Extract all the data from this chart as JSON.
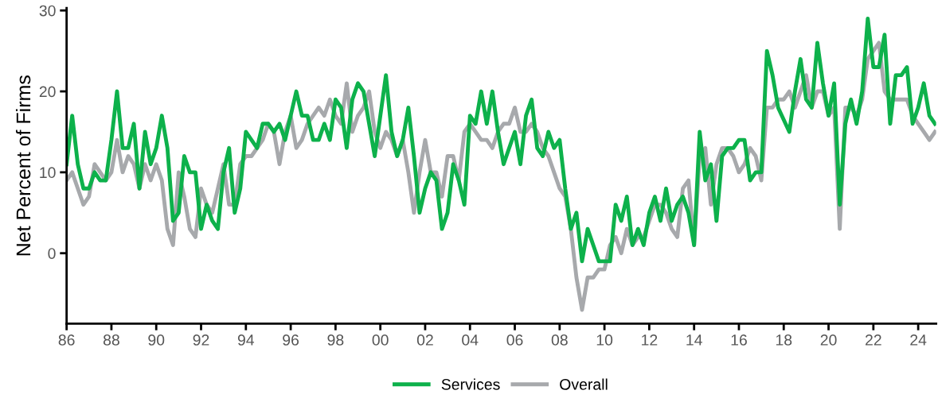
{
  "chart_data": {
    "type": "line",
    "ylabel": "Net Percent of Firms",
    "x": [
      1986,
      1986.25,
      1986.5,
      1986.75,
      1987,
      1987.25,
      1987.5,
      1987.75,
      1988,
      1988.25,
      1988.5,
      1988.75,
      1989,
      1989.25,
      1989.5,
      1989.75,
      1990,
      1990.25,
      1990.5,
      1990.75,
      1991,
      1991.25,
      1991.5,
      1991.75,
      1992,
      1992.25,
      1992.5,
      1992.75,
      1993,
      1993.25,
      1993.5,
      1993.75,
      1994,
      1994.25,
      1994.5,
      1994.75,
      1995,
      1995.25,
      1995.5,
      1995.75,
      1996,
      1996.25,
      1996.5,
      1996.75,
      1997,
      1997.25,
      1997.5,
      1997.75,
      1998,
      1998.25,
      1998.5,
      1998.75,
      1999,
      1999.25,
      1999.5,
      1999.75,
      2000,
      2000.25,
      2000.5,
      2000.75,
      2001,
      2001.25,
      2001.5,
      2001.75,
      2002,
      2002.25,
      2002.5,
      2002.75,
      2003,
      2003.25,
      2003.5,
      2003.75,
      2004,
      2004.25,
      2004.5,
      2004.75,
      2005,
      2005.25,
      2005.5,
      2005.75,
      2006,
      2006.25,
      2006.5,
      2006.75,
      2007,
      2007.25,
      2007.5,
      2007.75,
      2008,
      2008.25,
      2008.5,
      2008.75,
      2009,
      2009.25,
      2009.5,
      2009.75,
      2010,
      2010.25,
      2010.5,
      2010.75,
      2011,
      2011.25,
      2011.5,
      2011.75,
      2012,
      2012.25,
      2012.5,
      2012.75,
      2013,
      2013.25,
      2013.5,
      2013.75,
      2014,
      2014.25,
      2014.5,
      2014.75,
      2015,
      2015.25,
      2015.5,
      2015.75,
      2016,
      2016.25,
      2016.5,
      2016.75,
      2017,
      2017.25,
      2017.5,
      2017.75,
      2018,
      2018.25,
      2018.5,
      2018.75,
      2019,
      2019.25,
      2019.5,
      2019.75,
      2020,
      2020.25,
      2020.5,
      2020.75,
      2021,
      2021.25,
      2021.5,
      2021.75,
      2022,
      2022.25,
      2022.5,
      2022.75,
      2023,
      2023.25,
      2023.5,
      2023.75,
      2024,
      2024.25,
      2024.5,
      2024.75
    ],
    "xlim": [
      1986,
      2024.8
    ],
    "ylim": [
      -8.7,
      30.3
    ],
    "xticks": [
      {
        "value": 1986,
        "label": "86"
      },
      {
        "value": 1988,
        "label": "88"
      },
      {
        "value": 1990,
        "label": "90"
      },
      {
        "value": 1992,
        "label": "92"
      },
      {
        "value": 1994,
        "label": "94"
      },
      {
        "value": 1996,
        "label": "96"
      },
      {
        "value": 1998,
        "label": "98"
      },
      {
        "value": 2000,
        "label": "00"
      },
      {
        "value": 2002,
        "label": "02"
      },
      {
        "value": 2004,
        "label": "04"
      },
      {
        "value": 2006,
        "label": "06"
      },
      {
        "value": 2008,
        "label": "08"
      },
      {
        "value": 2010,
        "label": "10"
      },
      {
        "value": 2012,
        "label": "12"
      },
      {
        "value": 2014,
        "label": "14"
      },
      {
        "value": 2016,
        "label": "16"
      },
      {
        "value": 2018,
        "label": "18"
      },
      {
        "value": 2020,
        "label": "20"
      },
      {
        "value": 2022,
        "label": "22"
      },
      {
        "value": 2024,
        "label": "24"
      }
    ],
    "yticks": [
      0,
      10,
      20,
      30
    ],
    "grid": false,
    "legend": "bottom",
    "marker": "none",
    "line_style": "solid",
    "series": [
      {
        "name": "Services",
        "color": "#0db14b",
        "values": [
          11,
          17,
          11,
          8,
          8,
          10,
          9,
          9,
          14,
          20,
          13,
          13,
          16,
          8,
          15,
          11,
          13,
          17,
          13,
          4,
          5,
          12,
          10,
          10,
          3,
          6,
          4,
          3,
          10,
          13,
          5,
          8,
          15,
          14,
          13,
          16,
          16,
          15,
          16,
          14,
          17,
          20,
          17,
          17,
          14,
          14,
          16,
          14,
          19,
          18,
          13,
          19,
          21,
          20,
          16,
          12,
          17,
          22,
          15,
          12,
          14,
          18,
          12,
          5,
          8,
          10,
          9,
          3,
          5,
          11,
          9,
          6,
          17,
          16,
          20,
          16,
          20,
          15,
          11,
          13,
          15,
          11,
          17,
          19,
          13,
          12,
          15,
          13,
          14,
          8,
          3,
          5,
          -1,
          3,
          1,
          -1,
          -1,
          -1,
          6,
          4,
          7,
          1,
          3,
          1,
          5,
          7,
          4,
          8,
          4,
          6,
          7,
          5,
          1,
          15,
          9,
          11,
          4,
          12,
          13,
          13,
          14,
          14,
          9,
          10,
          10,
          25,
          22,
          18,
          16.5,
          15,
          20,
          24,
          19,
          18,
          26,
          21,
          17,
          21,
          6,
          16,
          19,
          16,
          20,
          29,
          23,
          23,
          27,
          16,
          22,
          22,
          23,
          16,
          18,
          21,
          17,
          16
        ]
      },
      {
        "name": "Overall",
        "color": "#a7a9ac",
        "values": [
          9,
          10,
          8,
          6,
          7,
          11,
          10,
          9,
          10,
          14,
          10,
          12,
          11,
          8,
          11,
          9,
          11,
          9,
          3,
          1,
          10,
          7,
          3,
          2,
          8,
          6,
          5,
          8,
          11,
          6,
          6,
          11,
          12,
          12,
          13,
          14,
          16,
          15,
          11,
          15,
          17,
          13,
          14,
          16,
          17,
          18,
          17,
          19,
          17,
          16,
          21,
          15,
          17,
          18,
          20,
          15,
          13,
          15,
          14,
          12,
          14,
          10,
          5,
          10,
          14,
          10,
          10,
          7,
          12,
          12,
          9,
          15,
          16,
          15,
          14,
          14,
          13,
          15,
          16,
          16,
          18,
          15,
          15,
          16,
          15,
          13,
          12,
          10,
          8,
          7,
          3,
          -3,
          -7,
          -3,
          -3,
          -2,
          -2,
          1,
          2,
          0,
          3,
          1,
          2,
          2,
          4,
          6,
          6,
          5,
          3,
          2,
          8,
          9,
          1,
          12,
          13,
          6,
          11,
          13,
          13,
          12,
          10,
          11,
          13,
          12,
          9,
          18,
          18,
          19,
          19,
          20,
          18,
          20,
          22,
          18,
          20,
          20,
          17,
          18,
          3,
          18,
          18,
          17,
          19,
          24,
          25,
          26,
          20,
          19,
          19,
          19,
          19,
          17,
          16,
          15,
          14,
          15
        ]
      }
    ]
  }
}
